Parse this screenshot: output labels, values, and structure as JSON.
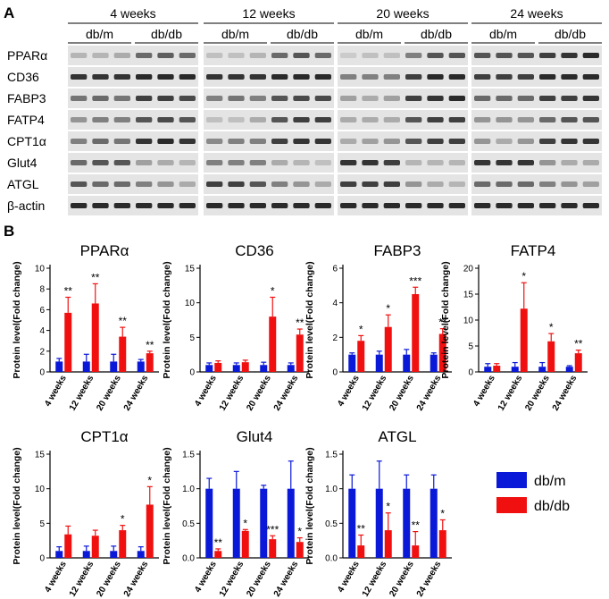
{
  "panel_a_label": "A",
  "panel_b_label": "B",
  "blot": {
    "timepoints": [
      "4 weeks",
      "12 weeks",
      "20 weeks",
      "24 weeks"
    ],
    "groups": [
      "db/m",
      "db/db"
    ],
    "proteins": [
      "PPARα",
      "CD36",
      "FABP3",
      "FATP4",
      "CPT1α",
      "Glut4",
      "ATGL",
      "β-actin"
    ]
  },
  "legend": {
    "items": [
      {
        "label": "db/m",
        "color": "#0a18d8"
      },
      {
        "label": "db/db",
        "color": "#f01010"
      }
    ]
  },
  "colors": {
    "dbm": "#0a18d8",
    "dbdb": "#f01010"
  },
  "chart_data": [
    {
      "type": "bar",
      "title": "PPARα",
      "ylabel": "Protein level(Fold change)",
      "categories": [
        "4 weeks",
        "12 weeks",
        "20 weeks",
        "24 weeks"
      ],
      "ylim": [
        0,
        10
      ],
      "yticks": [
        0,
        2,
        4,
        6,
        8,
        10
      ],
      "series": [
        {
          "name": "db/m",
          "values": [
            1.0,
            1.0,
            1.0,
            1.0
          ],
          "errors": [
            0.3,
            0.7,
            0.7,
            0.2
          ]
        },
        {
          "name": "db/db",
          "values": [
            5.7,
            6.6,
            3.4,
            1.8
          ],
          "errors": [
            1.5,
            1.9,
            0.9,
            0.2
          ]
        }
      ],
      "annotations": [
        "**",
        "**",
        "**",
        "**"
      ]
    },
    {
      "type": "bar",
      "title": "CD36",
      "ylabel": "Protein level(Fold change)",
      "categories": [
        "4 weeks",
        "12 weeks",
        "20 weeks",
        "24 weeks"
      ],
      "ylim": [
        0,
        15
      ],
      "yticks": [
        0,
        5,
        10,
        15
      ],
      "series": [
        {
          "name": "db/m",
          "values": [
            1.0,
            1.0,
            1.0,
            1.0
          ],
          "errors": [
            0.3,
            0.3,
            0.4,
            0.3
          ]
        },
        {
          "name": "db/db",
          "values": [
            1.3,
            1.4,
            8.0,
            5.4
          ],
          "errors": [
            0.3,
            0.3,
            2.8,
            0.8
          ]
        }
      ],
      "annotations": [
        "",
        "",
        "*",
        "**"
      ]
    },
    {
      "type": "bar",
      "title": "FABP3",
      "ylabel": "Protein level(Fold change)",
      "categories": [
        "4 weeks",
        "12 weeks",
        "20 weeks",
        "24 weeks"
      ],
      "ylim": [
        0,
        6
      ],
      "yticks": [
        0,
        2,
        4,
        6
      ],
      "series": [
        {
          "name": "db/m",
          "values": [
            1.0,
            1.0,
            1.0,
            1.0
          ],
          "errors": [
            0.1,
            0.2,
            0.3,
            0.1
          ]
        },
        {
          "name": "db/db",
          "values": [
            1.8,
            2.6,
            4.5,
            2.2
          ],
          "errors": [
            0.3,
            0.7,
            0.4,
            0.3
          ]
        }
      ],
      "annotations": [
        "*",
        "*",
        "***",
        "**"
      ]
    },
    {
      "type": "bar",
      "title": "FATP4",
      "ylabel": "Protein level(Fold change)",
      "categories": [
        "4 weeks",
        "12 weeks",
        "20 weeks",
        "24 weeks"
      ],
      "ylim": [
        0,
        20
      ],
      "yticks": [
        0,
        5,
        10,
        15,
        20
      ],
      "series": [
        {
          "name": "db/m",
          "values": [
            1.0,
            1.0,
            1.0,
            1.0
          ],
          "errors": [
            0.6,
            0.8,
            0.8,
            0.2
          ]
        },
        {
          "name": "db/db",
          "values": [
            1.2,
            12.2,
            5.9,
            3.6
          ],
          "errors": [
            0.4,
            5.0,
            1.5,
            0.6
          ]
        }
      ],
      "annotations": [
        "",
        "*",
        "*",
        "**"
      ]
    },
    {
      "type": "bar",
      "title": "CPT1α",
      "ylabel": "Protein level(Fold change)",
      "categories": [
        "4 weeks",
        "12 weeks",
        "20 weeks",
        "24 weeks"
      ],
      "ylim": [
        0,
        15
      ],
      "yticks": [
        0,
        5,
        10,
        15
      ],
      "series": [
        {
          "name": "db/m",
          "values": [
            1.0,
            1.0,
            1.0,
            1.0
          ],
          "errors": [
            0.6,
            0.7,
            0.7,
            0.6
          ]
        },
        {
          "name": "db/db",
          "values": [
            3.4,
            3.2,
            4.0,
            7.7
          ],
          "errors": [
            1.2,
            0.8,
            0.7,
            2.6
          ]
        }
      ],
      "annotations": [
        "",
        "",
        "*",
        "*"
      ]
    },
    {
      "type": "bar",
      "title": "Glut4",
      "ylabel": "Protein level(Fold change)",
      "categories": [
        "4 weeks",
        "12 weeks",
        "20 weeks",
        "24 weeks"
      ],
      "ylim": [
        0,
        1.5
      ],
      "yticks": [
        0.0,
        0.5,
        1.0,
        1.5
      ],
      "series": [
        {
          "name": "db/m",
          "values": [
            1.0,
            1.0,
            1.0,
            1.0
          ],
          "errors": [
            0.15,
            0.25,
            0.05,
            0.4
          ]
        },
        {
          "name": "db/db",
          "values": [
            0.1,
            0.39,
            0.27,
            0.23
          ],
          "errors": [
            0.03,
            0.02,
            0.05,
            0.06
          ]
        }
      ],
      "annotations": [
        "**",
        "*",
        "***",
        "*"
      ]
    },
    {
      "type": "bar",
      "title": "ATGL",
      "ylabel": "Protein level(Fold change)",
      "categories": [
        "4 weeks",
        "12 weeks",
        "20 weeks",
        "24 weeks"
      ],
      "ylim": [
        0,
        1.5
      ],
      "yticks": [
        0.0,
        0.5,
        1.0,
        1.5
      ],
      "series": [
        {
          "name": "db/m",
          "values": [
            1.0,
            1.0,
            1.0,
            1.0
          ],
          "errors": [
            0.2,
            0.4,
            0.2,
            0.2
          ]
        },
        {
          "name": "db/db",
          "values": [
            0.18,
            0.4,
            0.18,
            0.4
          ],
          "errors": [
            0.15,
            0.25,
            0.2,
            0.15
          ]
        }
      ],
      "annotations": [
        "**",
        "*",
        "**",
        "*"
      ]
    }
  ]
}
